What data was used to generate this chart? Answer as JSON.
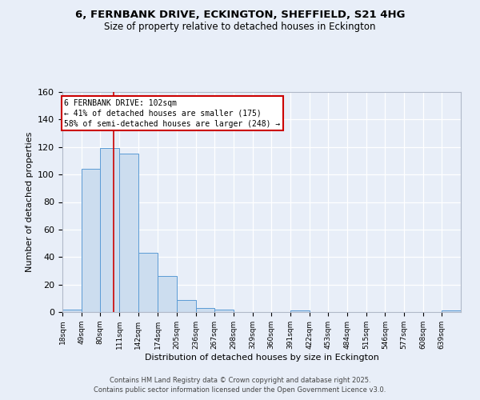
{
  "title_line1": "6, FERNBANK DRIVE, ECKINGTON, SHEFFIELD, S21 4HG",
  "title_line2": "Size of property relative to detached houses in Eckington",
  "xlabel": "Distribution of detached houses by size in Eckington",
  "ylabel": "Number of detached properties",
  "bin_labels": [
    "18sqm",
    "49sqm",
    "80sqm",
    "111sqm",
    "142sqm",
    "174sqm",
    "205sqm",
    "236sqm",
    "267sqm",
    "298sqm",
    "329sqm",
    "360sqm",
    "391sqm",
    "422sqm",
    "453sqm",
    "484sqm",
    "515sqm",
    "546sqm",
    "577sqm",
    "608sqm",
    "639sqm"
  ],
  "bin_edges": [
    18,
    49,
    80,
    111,
    142,
    174,
    205,
    236,
    267,
    298,
    329,
    360,
    391,
    422,
    453,
    484,
    515,
    546,
    577,
    608,
    639,
    670
  ],
  "bar_heights": [
    2,
    104,
    119,
    115,
    43,
    26,
    9,
    3,
    2,
    0,
    0,
    0,
    1,
    0,
    0,
    0,
    0,
    0,
    0,
    0,
    1
  ],
  "bar_color": "#ccddef",
  "bar_edge_color": "#5b9bd5",
  "red_line_x": 102,
  "annotation_text": "6 FERNBANK DRIVE: 102sqm\n← 41% of detached houses are smaller (175)\n58% of semi-detached houses are larger (248) →",
  "annotation_box_color": "#ffffff",
  "annotation_box_edge_color": "#cc0000",
  "ylim": [
    0,
    160
  ],
  "yticks": [
    0,
    20,
    40,
    60,
    80,
    100,
    120,
    140,
    160
  ],
  "background_color": "#e8eef8",
  "grid_color": "#d0d8e8",
  "footer_line1": "Contains HM Land Registry data © Crown copyright and database right 2025.",
  "footer_line2": "Contains public sector information licensed under the Open Government Licence v3.0."
}
